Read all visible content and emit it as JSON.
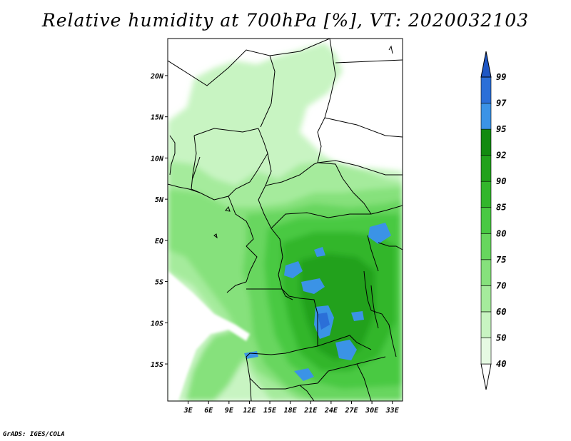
{
  "title": "Relative humidity at 700hPa [%], VT: 2020032103",
  "credit": "GrADS: IGES/COLA",
  "map": {
    "type": "map",
    "variable": "Relative humidity at 700hPa",
    "units": "%",
    "valid_time": "2020032103",
    "lon_range": [
      0,
      34.5
    ],
    "lat_range": [
      -19.5,
      24.5
    ],
    "lat_ticks": [
      {
        "value": 20,
        "label": "20N"
      },
      {
        "value": 15,
        "label": "15N"
      },
      {
        "value": 10,
        "label": "10N"
      },
      {
        "value": 5,
        "label": "5N"
      },
      {
        "value": 0,
        "label": "EQ"
      },
      {
        "value": -5,
        "label": "5S"
      },
      {
        "value": -10,
        "label": "10S"
      },
      {
        "value": -15,
        "label": "15S"
      }
    ],
    "lon_ticks": [
      {
        "value": 3,
        "label": "3E"
      },
      {
        "value": 6,
        "label": "6E"
      },
      {
        "value": 9,
        "label": "9E"
      },
      {
        "value": 12,
        "label": "12E"
      },
      {
        "value": 15,
        "label": "15E"
      },
      {
        "value": 18,
        "label": "18E"
      },
      {
        "value": 21,
        "label": "21E"
      },
      {
        "value": 24,
        "label": "24E"
      },
      {
        "value": 27,
        "label": "27E"
      },
      {
        "value": 30,
        "label": "30E"
      },
      {
        "value": 33,
        "label": "33E"
      }
    ]
  },
  "legend": {
    "levels": [
      "40",
      "50",
      "60",
      "70",
      "75",
      "80",
      "85",
      "90",
      "92",
      "95",
      "97",
      "99"
    ],
    "colors": [
      "#ffffff",
      "#e6fae3",
      "#c8f4c2",
      "#a5eb9c",
      "#86e17c",
      "#67d65e",
      "#49c943",
      "#32b62c",
      "#21a11c",
      "#128a10",
      "#3b93e6",
      "#2b6fd8",
      "#1f57c4"
    ]
  }
}
